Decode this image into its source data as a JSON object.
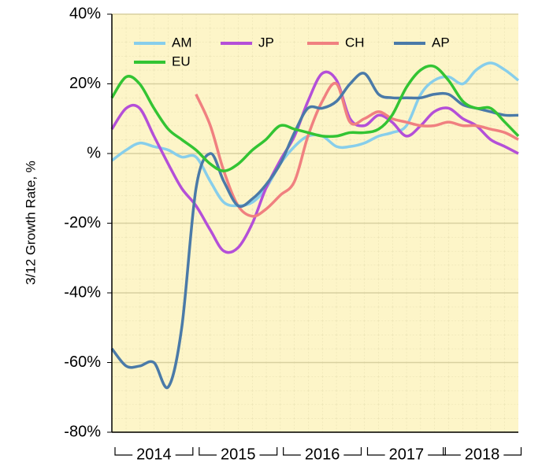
{
  "chart_data": {
    "type": "line",
    "y_label": "3/12 Growth Rate, %",
    "x": [
      2014,
      2014.17,
      2014.33,
      2014.5,
      2014.67,
      2014.83,
      2015,
      2015.17,
      2015.33,
      2015.5,
      2015.67,
      2015.83,
      2016,
      2016.17,
      2016.33,
      2016.5,
      2016.67,
      2016.83,
      2017,
      2017.17,
      2017.33,
      2017.5,
      2017.67,
      2017.83,
      2018,
      2018.17,
      2018.33,
      2018.5,
      2018.67,
      2018.83
    ],
    "series": [
      {
        "name": "AM",
        "color": "#87ceeb",
        "values": [
          -2,
          1,
          3,
          2,
          1,
          -1,
          -1,
          -8,
          -14,
          -15,
          -14,
          -10,
          -3,
          2,
          5,
          5,
          2,
          2,
          3,
          5,
          6,
          8,
          17,
          21,
          22,
          20,
          24,
          26,
          24,
          21
        ]
      },
      {
        "name": "JP",
        "color": "#b44fd8",
        "values": [
          7,
          13,
          13,
          5,
          -3,
          -10,
          -15,
          -22,
          -28,
          -27,
          -20,
          -10,
          -2,
          5,
          15,
          23,
          21,
          10,
          8,
          11,
          9,
          5,
          8,
          12,
          13,
          10,
          8,
          4,
          2,
          0
        ]
      },
      {
        "name": "CH",
        "color": "#f08080",
        "values": [
          null,
          null,
          null,
          null,
          null,
          null,
          17,
          8,
          -5,
          -15,
          -18,
          -16,
          -12,
          -8,
          5,
          15,
          20,
          9,
          10,
          12,
          10,
          9,
          8,
          8,
          9,
          8,
          8,
          7,
          6,
          4
        ]
      },
      {
        "name": "AP",
        "color": "#4a7aa8",
        "values": [
          -56,
          -61,
          -61,
          -60,
          -67,
          -50,
          -10,
          0,
          -8,
          -15,
          -13,
          -9,
          -3,
          6,
          13,
          13,
          15,
          20,
          23,
          17,
          16,
          16,
          16,
          17,
          17,
          14,
          13,
          12,
          11,
          11
        ]
      },
      {
        "name": "EU",
        "color": "#33c433",
        "values": [
          16,
          22,
          20,
          13,
          7,
          4,
          1,
          -3,
          -5,
          -3,
          1,
          4,
          8,
          7,
          6,
          5,
          5,
          6,
          6,
          7,
          11,
          19,
          24,
          25,
          21,
          15,
          13,
          13,
          9,
          5
        ]
      }
    ],
    "xlim": [
      2014,
      2018.83
    ],
    "xticks": [
      {
        "value": 2014.5,
        "label": "2014"
      },
      {
        "value": 2015.5,
        "label": "2015"
      },
      {
        "value": 2016.5,
        "label": "2016"
      },
      {
        "value": 2017.5,
        "label": "2017"
      },
      {
        "value": 2018.4,
        "label": "2018"
      }
    ],
    "ylim": [
      -80,
      40
    ],
    "yticks": [
      {
        "value": -80,
        "label": "-80%"
      },
      {
        "value": -60,
        "label": "-60%"
      },
      {
        "value": -40,
        "label": "-40%"
      },
      {
        "value": -20,
        "label": "-20%"
      },
      {
        "value": 0,
        "label": "%"
      },
      {
        "value": 20,
        "label": "20%"
      },
      {
        "value": 40,
        "label": "40%"
      }
    ],
    "grid": true,
    "legend": "top-left"
  }
}
